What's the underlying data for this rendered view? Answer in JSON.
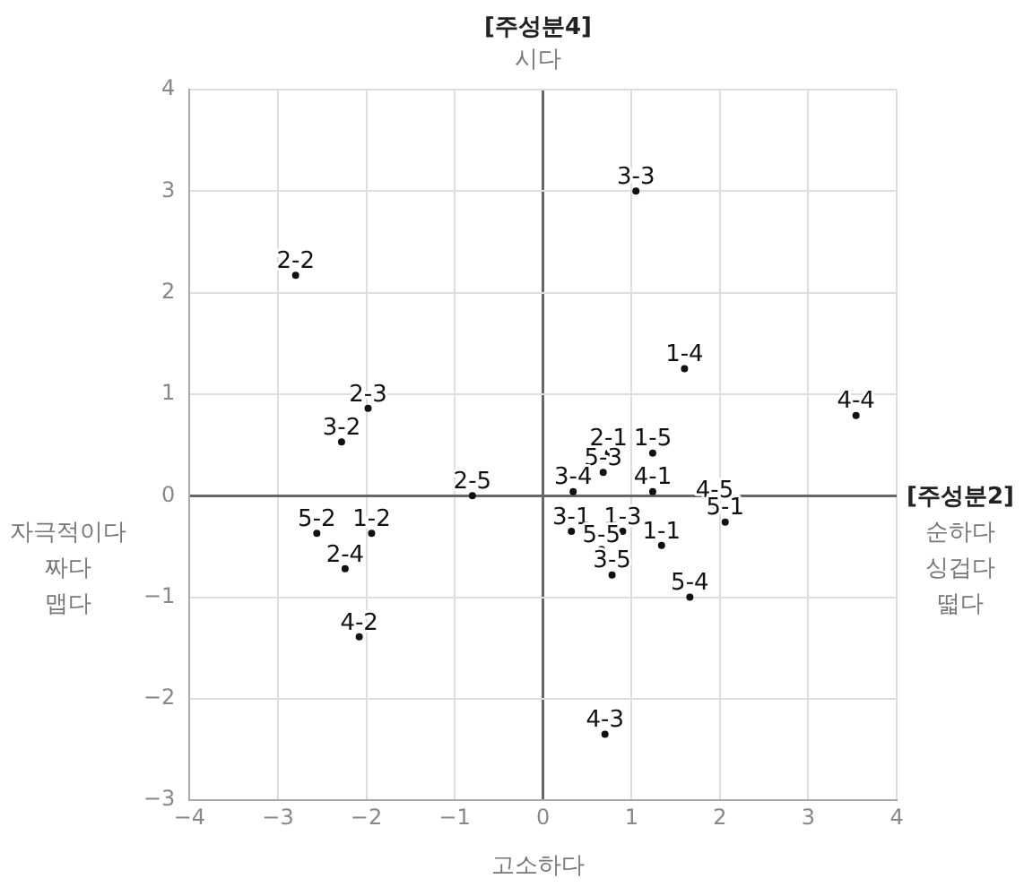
{
  "chart_data": {
    "type": "scatter",
    "title": "[주성분4]",
    "subtitle": "시다",
    "xlabel": "고소하다",
    "ylabel": "자극적이다\n짜다\n맵다",
    "annotations": [
      "[주성분2]",
      "순하다",
      "싱겁다",
      "떫다"
    ],
    "series": [
      {
        "color": "#111111",
        "x": [
          1.05,
          -2.8,
          1.6,
          3.54,
          -1.98,
          -2.28,
          0.74,
          1.24,
          0.68,
          0.34,
          1.24,
          -0.8,
          1.94,
          2.06,
          0.32,
          0.9,
          1.34,
          0.66,
          0.78,
          1.66,
          -2.56,
          -1.94,
          -2.24,
          -2.08,
          0.7
        ],
        "values": [
          3.0,
          2.17,
          1.25,
          0.79,
          0.86,
          0.53,
          0.42,
          0.42,
          0.23,
          0.04,
          0.04,
          0.0,
          -0.09,
          -0.26,
          -0.35,
          -0.35,
          -0.49,
          -0.53,
          -0.78,
          -1.0,
          -0.37,
          -0.37,
          -0.72,
          -1.39,
          -2.35
        ],
        "value_labels": [
          "3-3",
          "2-2",
          "1-4",
          "4-4",
          "2-3",
          "3-2",
          "2-1",
          "1-5",
          "5-3",
          "3-4",
          "4-1",
          "2-5",
          "4-5",
          "5-1",
          "3-1",
          "1-3",
          "1-1",
          "5-5",
          "3-5",
          "5-4",
          "5-2",
          "1-2",
          "2-4",
          "4-2",
          "4-3"
        ]
      }
    ],
    "marker": "circle",
    "grid": true,
    "legend": false,
    "xlim": [
      -4,
      4
    ],
    "xticks": [
      {
        "value": -4,
        "label": "−4"
      },
      {
        "value": -3,
        "label": "−3"
      },
      {
        "value": -2,
        "label": "−2"
      },
      {
        "value": -1,
        "label": "−1"
      },
      0,
      1,
      2,
      3,
      4
    ],
    "ylim": [
      -3,
      4
    ],
    "yticks": [
      {
        "value": -3,
        "label": "−3"
      },
      {
        "value": -2,
        "label": "−2"
      },
      {
        "value": -1,
        "label": "−1"
      },
      0,
      1,
      2,
      3,
      4
    ]
  }
}
